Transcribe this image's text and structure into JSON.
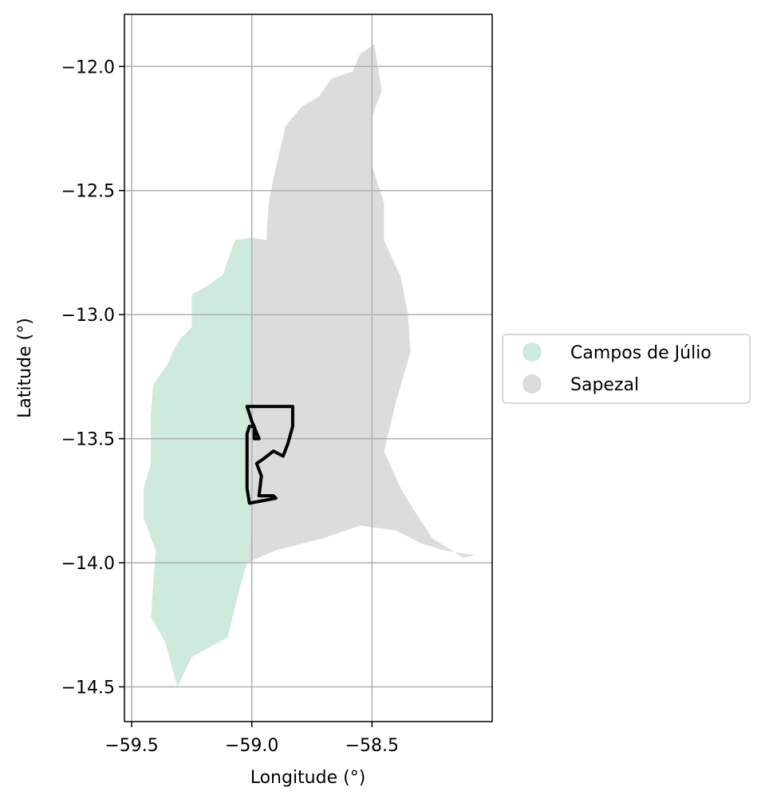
{
  "map": {
    "xlabel": "Longitude (°)",
    "ylabel": "Latitude (°)",
    "xlim": [
      -59.53,
      -58.0
    ],
    "ylim": [
      -14.64,
      -11.79
    ],
    "x_ticks": [
      -59.5,
      -59.0,
      -58.5
    ],
    "x_tick_labels": [
      "−59.5",
      "−59.0",
      "−58.5"
    ],
    "y_ticks": [
      -12.0,
      -12.5,
      -13.0,
      -13.5,
      -14.0,
      -14.5
    ],
    "y_tick_labels": [
      "−12.0",
      "−12.5",
      "−13.0",
      "−13.5",
      "−14.0",
      "−14.5"
    ],
    "grid": true,
    "legend_position": "right-center"
  },
  "regions": [
    {
      "name": "Campos de Júlio",
      "color": "#cdeadd",
      "coords": [
        [
          -59.07,
          -12.7
        ],
        [
          -59.0,
          -12.69
        ],
        [
          -59.0,
          -13.3
        ],
        [
          -59.02,
          -13.55
        ],
        [
          -59.0,
          -13.85
        ],
        [
          -59.02,
          -14.0
        ],
        [
          -59.05,
          -14.1
        ],
        [
          -59.1,
          -14.3
        ],
        [
          -59.25,
          -14.38
        ],
        [
          -59.31,
          -14.5
        ],
        [
          -59.36,
          -14.32
        ],
        [
          -59.42,
          -14.22
        ],
        [
          -59.4,
          -13.95
        ],
        [
          -59.45,
          -13.82
        ],
        [
          -59.45,
          -13.7
        ],
        [
          -59.42,
          -13.6
        ],
        [
          -59.42,
          -13.4
        ],
        [
          -59.41,
          -13.28
        ],
        [
          -59.35,
          -13.2
        ],
        [
          -59.33,
          -13.15
        ],
        [
          -59.3,
          -13.1
        ],
        [
          -59.25,
          -13.05
        ],
        [
          -59.25,
          -12.92
        ],
        [
          -59.18,
          -12.88
        ],
        [
          -59.12,
          -12.84
        ],
        [
          -59.1,
          -12.78
        ]
      ]
    },
    {
      "name": "Sapezal",
      "color": "#dcdcdc",
      "coords": [
        [
          -58.49,
          -11.91
        ],
        [
          -58.55,
          -11.95
        ],
        [
          -58.58,
          -12.02
        ],
        [
          -58.67,
          -12.05
        ],
        [
          -58.72,
          -12.12
        ],
        [
          -58.79,
          -12.16
        ],
        [
          -58.86,
          -12.24
        ],
        [
          -58.91,
          -12.45
        ],
        [
          -58.93,
          -12.55
        ],
        [
          -58.94,
          -12.7
        ],
        [
          -59.0,
          -12.69
        ],
        [
          -59.0,
          -13.3
        ],
        [
          -59.02,
          -13.55
        ],
        [
          -59.0,
          -13.85
        ],
        [
          -59.02,
          -14.0
        ],
        [
          -58.9,
          -13.95
        ],
        [
          -58.7,
          -13.9
        ],
        [
          -58.55,
          -13.85
        ],
        [
          -58.4,
          -13.87
        ],
        [
          -58.3,
          -13.92
        ],
        [
          -58.2,
          -13.95
        ],
        [
          -58.07,
          -13.97
        ],
        [
          -58.12,
          -13.98
        ],
        [
          -58.25,
          -13.9
        ],
        [
          -58.35,
          -13.75
        ],
        [
          -58.38,
          -13.7
        ],
        [
          -58.45,
          -13.55
        ],
        [
          -58.4,
          -13.35
        ],
        [
          -58.34,
          -13.15
        ],
        [
          -58.35,
          -13.0
        ],
        [
          -58.38,
          -12.85
        ],
        [
          -58.45,
          -12.7
        ],
        [
          -58.45,
          -12.55
        ],
        [
          -58.5,
          -12.4
        ],
        [
          -58.5,
          -12.2
        ],
        [
          -58.46,
          -12.1
        ]
      ]
    }
  ],
  "outline": {
    "color": "#000000",
    "coords": [
      [
        -59.02,
        -13.37
      ],
      [
        -58.83,
        -13.37
      ],
      [
        -58.83,
        -13.45
      ],
      [
        -58.85,
        -13.52
      ],
      [
        -58.87,
        -13.57
      ],
      [
        -58.91,
        -13.55
      ],
      [
        -58.95,
        -13.58
      ],
      [
        -58.98,
        -13.6
      ],
      [
        -58.96,
        -13.65
      ],
      [
        -58.97,
        -13.73
      ],
      [
        -58.91,
        -13.73
      ],
      [
        -58.9,
        -13.74
      ],
      [
        -59.01,
        -13.76
      ],
      [
        -59.02,
        -13.7
      ],
      [
        -59.02,
        -13.6
      ],
      [
        -59.02,
        -13.48
      ],
      [
        -59.01,
        -13.45
      ],
      [
        -58.99,
        -13.45
      ],
      [
        -58.99,
        -13.5
      ],
      [
        -58.97,
        -13.5
      ],
      [
        -59.0,
        -13.43
      ],
      [
        -59.02,
        -13.37
      ]
    ]
  },
  "legend": {
    "items": [
      {
        "label": "Campos de Júlio",
        "color": "#cdeadd"
      },
      {
        "label": "Sapezal",
        "color": "#dcdcdc"
      }
    ]
  }
}
